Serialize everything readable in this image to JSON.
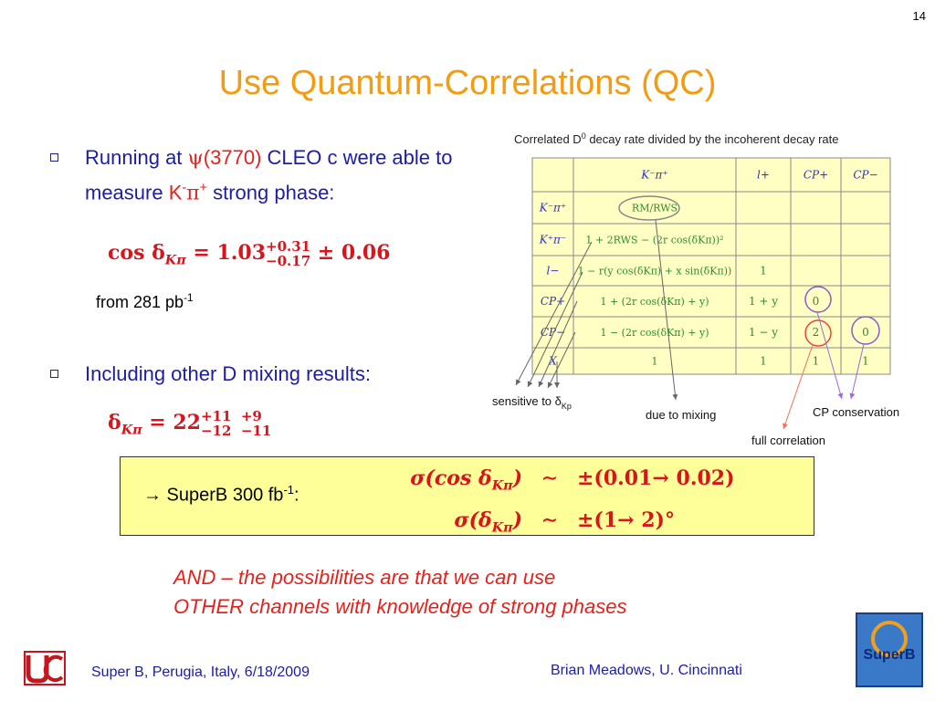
{
  "page_number": "14",
  "title": "Use Quantum-Correlations (QC)",
  "bullet1": [
    "Running at ",
    "ψ",
    "(3770)",
    " CLEO c were able to measure ",
    "K",
    "-",
    "π",
    "+",
    " strong phase:"
  ],
  "formula1": [
    "cos δ",
    "Kπ",
    " = 1.03",
    "+0.31",
    "−0.17",
    " ± 0.06"
  ],
  "luminosity": [
    "from 281 pb",
    "-1"
  ],
  "bullet2": "Including other D mixing results:",
  "formula2": [
    "δ",
    "Kπ",
    " = 22",
    "+11  +9",
    "−12  −11"
  ],
  "box": {
    "label": [
      "→ SuperB 300 fb",
      "-1",
      ":"
    ],
    "rows": [
      [
        "σ(cos δ",
        "Kπ",
        ")",
        "∼",
        "±(0.01→ 0.02)"
      ],
      [
        "σ(δ",
        "Kπ",
        ")",
        "∼",
        "±(1→ 2)°"
      ]
    ]
  },
  "note": [
    "AND – the possibilities are that we can use",
    "OTHER channels with knowledge of strong phases"
  ],
  "figure": {
    "caption": [
      "Correlated D",
      "0",
      " decay rate divided by the incoherent decay rate"
    ],
    "table": {
      "header": [
        null,
        "K⁻π⁺",
        "l+",
        "CP+",
        "CP−"
      ],
      "rows": [
        [
          "K⁻π⁺",
          "RM/RWS",
          null,
          null,
          null
        ],
        [
          "K⁺π⁻",
          "1 + 2RWS − (2r cos(δKπ))²",
          null,
          null,
          null
        ],
        [
          "l−",
          "1 − r(y cos(δKπ) + x sin(δKπ))",
          "1",
          null,
          null
        ],
        [
          "CP+",
          "1 + (2r cos(δKπ) + y)",
          "1 + y",
          "0",
          null
        ],
        [
          "CP−",
          "1 − (2r cos(δKπ) + y)",
          "1 − y",
          "2",
          "0"
        ],
        [
          "X",
          "1",
          "1",
          "1",
          "1"
        ]
      ]
    },
    "annotations": {
      "sensitive": [
        "sensitive to δ",
        "Kp"
      ],
      "mixing": "due to mixing",
      "cp_conservation": "CP conservation",
      "full_correlation": "full correlation"
    }
  },
  "logo_text": "SuperB",
  "footer": {
    "left": "Super B, Perugia, Italy, 6/18/2009",
    "right": "Brian Meadows, U. Cincinnati"
  }
}
